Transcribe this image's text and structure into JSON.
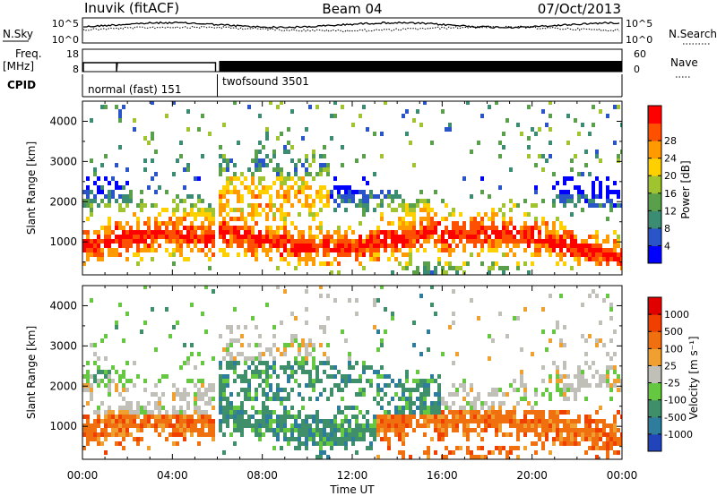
{
  "header": {
    "title": "Inuvik (fitACF)",
    "beam": "Beam 04",
    "date": "07/Oct/2013"
  },
  "side_labels": {
    "nsky": "N.Sky",
    "nsearch": "N.Search",
    "freq_top": "Freq.",
    "freq_bottom": "[MHz]",
    "nave": "Nave",
    "cpid": "CPID"
  },
  "strip_ticks": {
    "noise_left": [
      "10^5",
      "10^0"
    ],
    "noise_right": [
      "10^5",
      "10^0"
    ],
    "freq_left": [
      "18",
      "8"
    ],
    "nave_right": [
      "60",
      "0"
    ]
  },
  "modes": [
    {
      "label": "normal (fast) 151",
      "start_hour": 0,
      "end_hour": 6
    },
    {
      "label": "twofsound 3501",
      "start_hour": 6,
      "end_hour": 24
    }
  ],
  "chart_data": [
    {
      "type": "heatmap",
      "quantity": "Power",
      "ylabel": "Slant Range [km]",
      "ylim": [
        180,
        4500
      ],
      "yticks": [
        1000,
        2000,
        3000,
        4000
      ],
      "xlim_hours": [
        0,
        24
      ],
      "colorbar_label": "Power [dB]",
      "colorbar_ticks": [
        "4",
        "8",
        "12",
        "16",
        "20",
        "24",
        "28"
      ],
      "colorbar_colors": [
        "#0000ff",
        "#2a55c8",
        "#3c8c74",
        "#5aa04a",
        "#a0c430",
        "#ffd000",
        "#ff9a00",
        "#ff5000",
        "#ff0000"
      ]
    },
    {
      "type": "heatmap",
      "quantity": "Velocity",
      "ylabel": "Slant Range [km]",
      "ylim": [
        180,
        4500
      ],
      "yticks": [
        1000,
        2000,
        3000,
        4000
      ],
      "xlim_hours": [
        0,
        24
      ],
      "colorbar_label": "Velocity [m s⁻¹]",
      "colorbar_ticks": [
        "1000",
        "500",
        "100",
        "25",
        "-25",
        "-100",
        "-500",
        "-1000"
      ],
      "colorbar_colors": [
        "#2244bb",
        "#2f7d9c",
        "#3f8f6a",
        "#66c840",
        "#c0c0b8",
        "#f0a030",
        "#f07010",
        "#f04000",
        "#e00000"
      ]
    }
  ],
  "xaxis": {
    "ticks": [
      "00:00",
      "04:00",
      "08:00",
      "12:00",
      "16:00",
      "20:00",
      "00:00"
    ],
    "label": "Time UT"
  }
}
